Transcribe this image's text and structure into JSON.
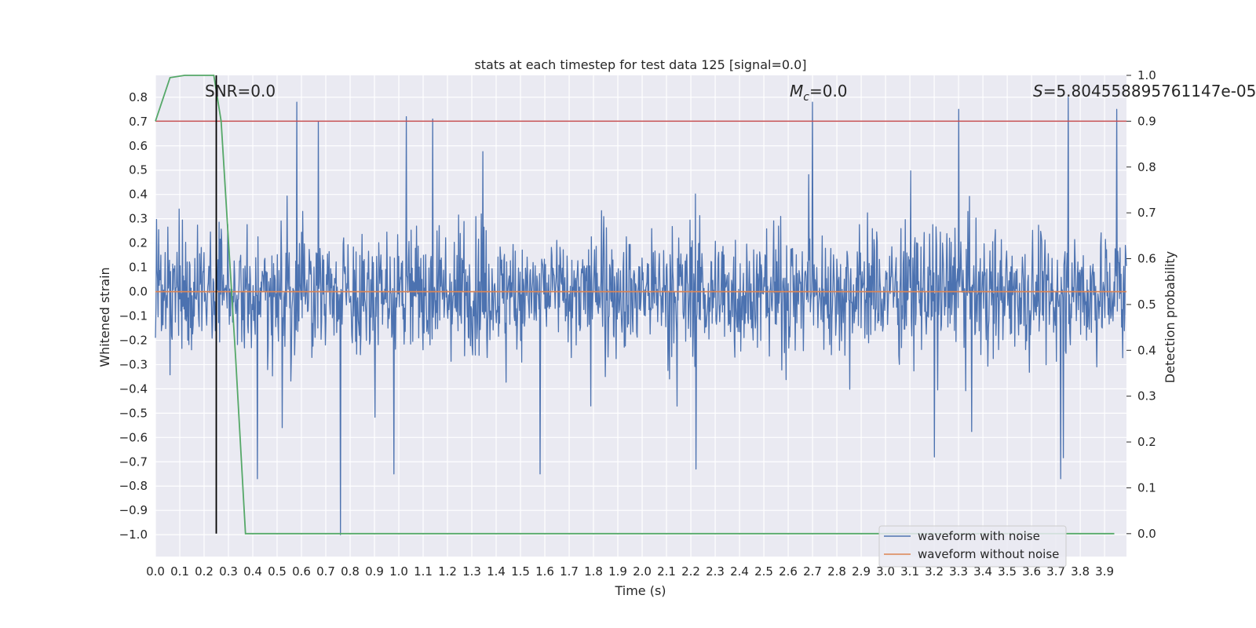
{
  "chart_data": {
    "type": "line",
    "title": "stats at each timestep for test data 125 [signal=0.0]",
    "xlabel": "Time (s)",
    "ylabel": "Whitened strain",
    "y2label": "Detection probability",
    "xlim": [
      0.0,
      3.99
    ],
    "ylim": [
      -1.09,
      0.89
    ],
    "y2lim": [
      -0.05,
      1.0
    ],
    "x_ticks": [
      "0.0",
      "0.1",
      "0.2",
      "0.3",
      "0.4",
      "0.5",
      "0.6",
      "0.7",
      "0.8",
      "0.9",
      "1.0",
      "1.1",
      "1.2",
      "1.3",
      "1.4",
      "1.5",
      "1.6",
      "1.7",
      "1.8",
      "1.9",
      "2.0",
      "2.1",
      "2.2",
      "2.3",
      "2.4",
      "2.5",
      "2.6",
      "2.7",
      "2.8",
      "2.9",
      "3.0",
      "3.1",
      "3.2",
      "3.3",
      "3.4",
      "3.5",
      "3.6",
      "3.7",
      "3.8",
      "3.9"
    ],
    "y_ticks": [
      "0.8",
      "0.7",
      "0.6",
      "0.5",
      "0.4",
      "0.3",
      "0.2",
      "0.1",
      "0.0",
      "−0.1",
      "−0.2",
      "−0.3",
      "−0.4",
      "−0.5",
      "−0.6",
      "−0.7",
      "−0.8",
      "−0.9",
      "−1.0"
    ],
    "y2_ticks": [
      "1.0",
      "0.9",
      "0.8",
      "0.7",
      "0.6",
      "0.5",
      "0.4",
      "0.3",
      "0.2",
      "0.1",
      "0.0"
    ],
    "grid": true,
    "legend_position": "lower-right",
    "annotations": {
      "snr": "SNR=0.0",
      "mc_symbol": "M",
      "mc_sub": "c",
      "mc_value": "=0.0",
      "s_symbol": "S",
      "s_value": "=5.804558895761147e-05"
    },
    "threshold": 0.9,
    "marker_time": 0.25,
    "series": [
      {
        "name": "waveform with noise",
        "color": "#4c72b0",
        "axis": "left",
        "kind": "noise",
        "amplitude_range": [
          -1.0,
          0.8
        ],
        "notable_peaks": [
          [
            0.58,
            0.78
          ],
          [
            0.67,
            0.7
          ],
          [
            1.03,
            0.72
          ],
          [
            1.14,
            0.71
          ],
          [
            2.7,
            0.78
          ],
          [
            3.3,
            0.75
          ],
          [
            3.75,
            0.8
          ],
          [
            3.95,
            0.75
          ]
        ],
        "notable_troughs": [
          [
            0.42,
            -0.77
          ],
          [
            0.76,
            -1.0
          ],
          [
            0.98,
            -0.75
          ],
          [
            1.58,
            -0.75
          ],
          [
            2.22,
            -0.73
          ],
          [
            3.2,
            -0.68
          ],
          [
            3.72,
            -0.77
          ]
        ]
      },
      {
        "name": "waveform without noise",
        "color": "#dd8452",
        "axis": "left",
        "x": [
          0.0,
          3.99
        ],
        "values": [
          0.0,
          0.0
        ]
      },
      {
        "color": "#55a868",
        "axis": "right",
        "x": [
          0.0,
          0.06,
          0.12,
          0.18,
          0.24,
          0.27,
          0.3,
          0.33,
          0.37,
          0.4,
          1.0,
          2.0,
          3.0,
          3.94
        ],
        "values": [
          0.9,
          0.995,
          1.0,
          1.0,
          1.0,
          0.9,
          0.64,
          0.38,
          0.0,
          0.0,
          0.0,
          0.0,
          0.0,
          0.0
        ]
      }
    ]
  }
}
